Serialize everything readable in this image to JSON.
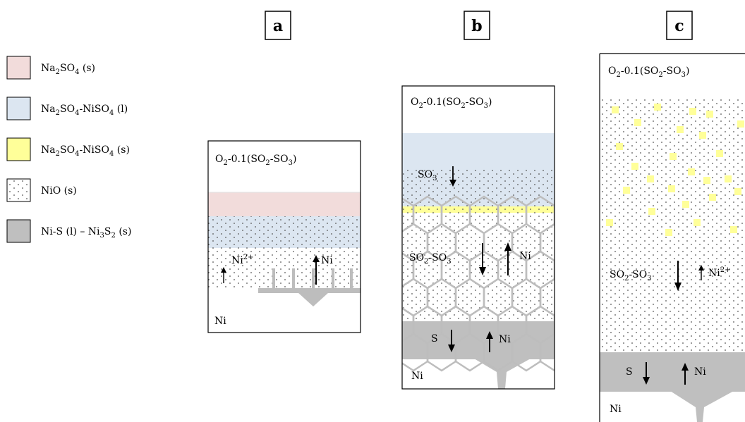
{
  "legend": [
    {
      "id": "na2so4-s",
      "parts": [
        [
          "Na",
          ""
        ],
        [
          "2",
          "sub"
        ],
        [
          "SO",
          ""
        ],
        [
          "4",
          "sub"
        ],
        [
          " (s)",
          ""
        ]
      ],
      "color": "#f2dcdb",
      "pattern": "none"
    },
    {
      "id": "na2so4-niso4-l",
      "parts": [
        [
          "Na",
          ""
        ],
        [
          "2",
          "sub"
        ],
        [
          "SO",
          ""
        ],
        [
          "4",
          "sub"
        ],
        [
          "-NiSO",
          ""
        ],
        [
          "4",
          "sub"
        ],
        [
          " (l)",
          ""
        ]
      ],
      "color": "#dce6f1",
      "pattern": "none"
    },
    {
      "id": "na2so4-niso4-s",
      "parts": [
        [
          "Na",
          ""
        ],
        [
          "2",
          "sub"
        ],
        [
          "SO",
          ""
        ],
        [
          "4",
          "sub"
        ],
        [
          "-NiSO",
          ""
        ],
        [
          "4",
          "sub"
        ],
        [
          " (s)",
          ""
        ]
      ],
      "color": "#ffff99",
      "pattern": "none"
    },
    {
      "id": "nio-s",
      "parts": [
        [
          "NiO (s)",
          ""
        ]
      ],
      "color": "#ffffff",
      "pattern": "dots"
    },
    {
      "id": "nis-ni3s2",
      "parts": [
        [
          "Ni-S (l) – Ni",
          ""
        ],
        [
          "3",
          "sub"
        ],
        [
          "S",
          ""
        ],
        [
          "2",
          "sub"
        ],
        [
          " (s)",
          ""
        ]
      ],
      "color": "#bfbfbf",
      "pattern": "none"
    }
  ],
  "panels": {
    "a": {
      "letter": "a",
      "atmosphere": [
        [
          "O",
          ""
        ],
        [
          "2",
          "sub"
        ],
        [
          "-0.1(SO",
          ""
        ],
        [
          "2",
          "sub"
        ],
        [
          "-SO",
          ""
        ],
        [
          "3",
          "sub"
        ],
        [
          ")",
          ""
        ]
      ],
      "ion_label": [
        [
          "Ni",
          ""
        ],
        [
          "2+",
          "sup"
        ]
      ],
      "ni_arrow_label": "Ni",
      "substrate": "Ni"
    },
    "b": {
      "letter": "b",
      "atmosphere": [
        [
          "O",
          ""
        ],
        [
          "2",
          "sub"
        ],
        [
          "-0.1(SO",
          ""
        ],
        [
          "2",
          "sub"
        ],
        [
          "-SO",
          ""
        ],
        [
          "3",
          "sub"
        ],
        [
          ")",
          ""
        ]
      ],
      "so3_label": [
        [
          "SO",
          ""
        ],
        [
          "3",
          "sub"
        ]
      ],
      "gas_label": [
        [
          "SO",
          ""
        ],
        [
          "2",
          "sub"
        ],
        [
          "-SO",
          ""
        ],
        [
          "3",
          "sub"
        ]
      ],
      "ni_arrow_label": "Ni",
      "s_label": "S",
      "ni_sulfide_label": "Ni",
      "substrate": "Ni"
    },
    "c": {
      "letter": "c",
      "atmosphere": [
        [
          "O",
          ""
        ],
        [
          "2",
          "sub"
        ],
        [
          "-0.1(SO",
          ""
        ],
        [
          "2",
          "sub"
        ],
        [
          "-SO",
          ""
        ],
        [
          "3",
          "sub"
        ],
        [
          ")",
          ""
        ]
      ],
      "gas_label": [
        [
          "SO",
          ""
        ],
        [
          "2",
          "sub"
        ],
        [
          "-SO",
          ""
        ],
        [
          "3",
          "sub"
        ]
      ],
      "ion_label": [
        [
          "Ni",
          ""
        ],
        [
          "2+",
          "sup"
        ]
      ],
      "s_label": "S",
      "ni_sulfide_label": "Ni",
      "substrate": "Ni"
    }
  },
  "colors": {
    "pink": "#f2dcdb",
    "blue": "#dce6f1",
    "yellow": "#ffff99",
    "grey": "#bfbfbf",
    "grey_line": "#bdbdbd",
    "dot": "#555555"
  }
}
